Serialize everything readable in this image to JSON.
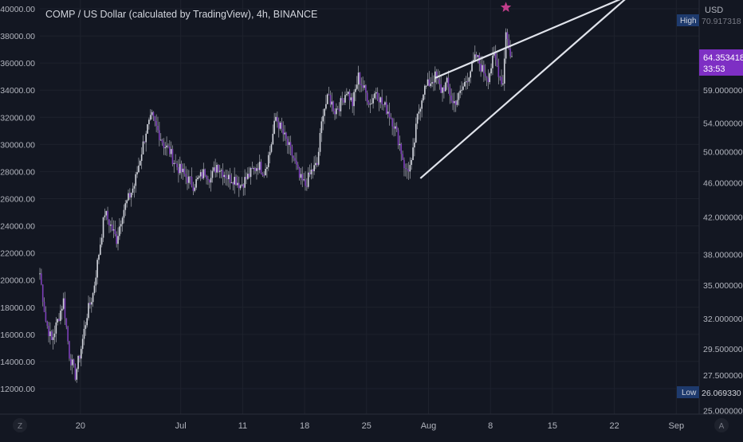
{
  "chart_data": {
    "type": "candlestick",
    "title": "COMP / US Dollar (calculated by TradingView), 4h, BINANCE",
    "left_axis": {
      "ticks": [
        "40000.00",
        "38000.00",
        "36000.00",
        "34000.00",
        "32000.00",
        "30000.00",
        "28000.00",
        "26000.00",
        "24000.00",
        "22000.00",
        "20000.00",
        "18000.00",
        "16000.00",
        "14000.00",
        "12000.00"
      ],
      "range": [
        11000,
        41000
      ]
    },
    "right_axis": {
      "unit": "USD",
      "scale": "log",
      "ticks": [
        "59.000000",
        "54.000000",
        "50.000000",
        "46.000000",
        "42.000000",
        "38.000000",
        "35.000000",
        "32.000000",
        "29.500000",
        "27.500000",
        "25.000000"
      ],
      "last_price_label": "64.353418",
      "countdown_label": "33:53",
      "high_tag": "High",
      "high_value": "70.917318",
      "low_tag": "Low",
      "low_value": "26.069330"
    },
    "x_axis": {
      "ticks": [
        "20",
        "Jul",
        "11",
        "18",
        "25",
        "Aug",
        "8",
        "15",
        "22",
        "Sep"
      ],
      "left_button": "Z",
      "right_button": "A"
    },
    "price_waypoints": [
      [
        0,
        20500
      ],
      [
        4,
        17000
      ],
      [
        8,
        15500
      ],
      [
        12,
        17000
      ],
      [
        16,
        18500
      ],
      [
        20,
        14500
      ],
      [
        24,
        13000
      ],
      [
        28,
        15000
      ],
      [
        32,
        17500
      ],
      [
        36,
        19000
      ],
      [
        40,
        22000
      ],
      [
        44,
        25000
      ],
      [
        48,
        24000
      ],
      [
        52,
        23000
      ],
      [
        56,
        25000
      ],
      [
        60,
        26000
      ],
      [
        64,
        27000
      ],
      [
        68,
        29000
      ],
      [
        72,
        31000
      ],
      [
        76,
        32000
      ],
      [
        80,
        31000
      ],
      [
        84,
        30000
      ],
      [
        88,
        29500
      ],
      [
        92,
        28500
      ],
      [
        96,
        28000
      ],
      [
        100,
        27500
      ],
      [
        104,
        27000
      ],
      [
        108,
        27500
      ],
      [
        112,
        28000
      ],
      [
        116,
        27500
      ],
      [
        120,
        28500
      ],
      [
        124,
        28000
      ],
      [
        128,
        27500
      ],
      [
        132,
        27500
      ],
      [
        136,
        27000
      ],
      [
        140,
        27500
      ],
      [
        144,
        28000
      ],
      [
        148,
        28500
      ],
      [
        152,
        28000
      ],
      [
        156,
        29500
      ],
      [
        160,
        32000
      ],
      [
        164,
        31000
      ],
      [
        168,
        30000
      ],
      [
        172,
        29000
      ],
      [
        176,
        27500
      ],
      [
        180,
        27000
      ],
      [
        184,
        28000
      ],
      [
        188,
        28500
      ],
      [
        192,
        32500
      ],
      [
        196,
        33500
      ],
      [
        200,
        32500
      ],
      [
        204,
        33000
      ],
      [
        208,
        34000
      ],
      [
        212,
        33000
      ],
      [
        216,
        35000
      ],
      [
        220,
        34000
      ],
      [
        224,
        33000
      ],
      [
        228,
        34000
      ],
      [
        232,
        33000
      ],
      [
        236,
        32500
      ],
      [
        240,
        31500
      ],
      [
        244,
        30000
      ],
      [
        248,
        28000
      ],
      [
        252,
        28500
      ],
      [
        256,
        32000
      ],
      [
        260,
        34000
      ],
      [
        264,
        34500
      ],
      [
        268,
        35000
      ],
      [
        272,
        34000
      ],
      [
        276,
        34500
      ],
      [
        280,
        33000
      ],
      [
        284,
        33500
      ],
      [
        288,
        34500
      ],
      [
        292,
        35500
      ],
      [
        296,
        36500
      ],
      [
        300,
        35500
      ],
      [
        304,
        35000
      ],
      [
        308,
        36500
      ],
      [
        312,
        35000
      ],
      [
        314,
        34500
      ],
      [
        316,
        38500
      ],
      [
        318,
        37000
      ],
      [
        320,
        36500
      ]
    ],
    "candles_per_day": 6,
    "x_tick_candle_index": [
      34,
      102,
      144,
      186,
      228,
      270,
      312,
      354,
      396,
      438
    ],
    "trendlines": [
      {
        "from": [
          268,
          34900
        ],
        "to": [
          400,
          41000
        ]
      },
      {
        "from": [
          258,
          27500
        ],
        "to": [
          400,
          41000
        ]
      }
    ],
    "colors": {
      "background": "#131722",
      "grid": "#1e222d",
      "candle_body": "#d1d4dc",
      "candle_bear": "#7c3fb8",
      "wick": "#9598a1",
      "trendline": "#e0e3eb",
      "star": "#c13d8b",
      "price_label": "#7e2fc4",
      "tag_bg": "#1e3a6d",
      "axis_text": "#b2b5be"
    }
  }
}
